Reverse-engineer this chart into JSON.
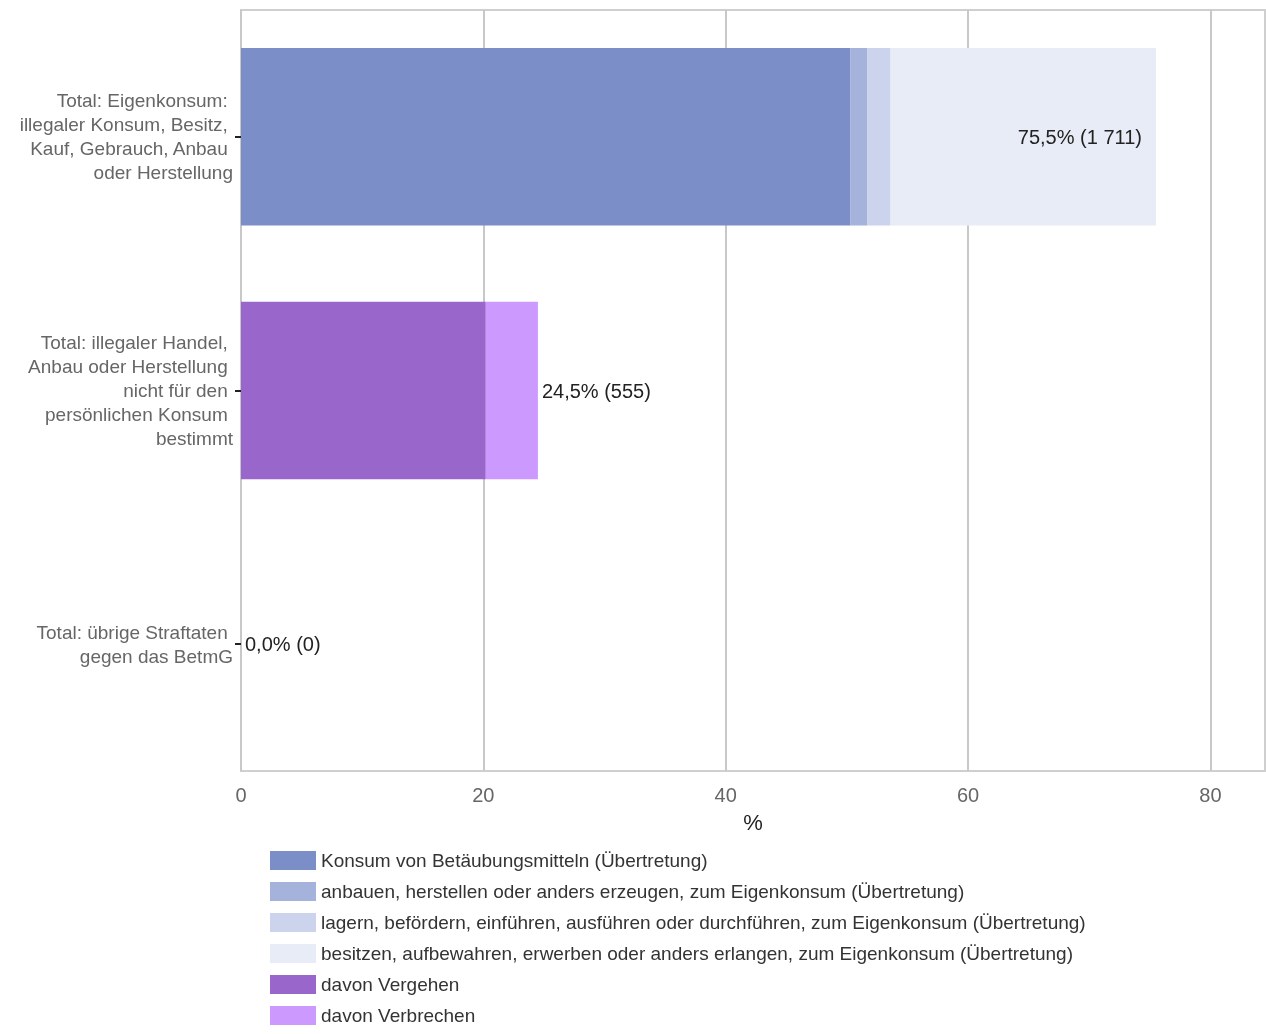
{
  "chart_data": {
    "type": "bar",
    "orientation": "horizontal",
    "stacked": true,
    "categories": [
      "Total: Eigenkonsum: illegaler Konsum, Besitz, Kauf, Gebrauch, Anbau oder Herstellung",
      "Total: illegaler Handel, Anbau oder Herstellung nicht für den persönlichen Konsum bestimmt",
      "Total: übrige Straftaten gegen das BetmG"
    ],
    "series": [
      {
        "name": "Konsum von Betäubungsmitteln (Übertretung)",
        "color": "#7b8ec8",
        "values": [
          50.3,
          null,
          null
        ]
      },
      {
        "name": "anbauen, herstellen oder anders erzeugen, zum Eigenkonsum (Übertretung)",
        "color": "#a4b2dc",
        "values": [
          1.4,
          null,
          null
        ]
      },
      {
        "name": "lagern, befördern, einführen, ausführen oder durchführen, zum Eigenkonsum (Übertretung)",
        "color": "#ccd3ec",
        "values": [
          1.9,
          null,
          null
        ]
      },
      {
        "name": "besitzen, aufbewahren, erwerben oder anders erlangen, zum Eigenkonsum (Übertretung)",
        "color": "#e8ecf6",
        "values": [
          21.9,
          null,
          null
        ]
      },
      {
        "name": "davon Vergehen",
        "color": "#9966cc",
        "values": [
          null,
          20.2,
          null
        ]
      },
      {
        "name": "davon Verbrechen",
        "color": "#cc99ff",
        "values": [
          null,
          4.3,
          null
        ]
      }
    ],
    "totals": [
      "75,5% (1 711)",
      "24,5% (555)",
      "0,0% (0)"
    ],
    "xlabel": "%",
    "xlim": [
      0,
      84.5
    ],
    "xticks": [
      0,
      20,
      40,
      60,
      80
    ],
    "grid": "x",
    "legend": "bottom"
  }
}
